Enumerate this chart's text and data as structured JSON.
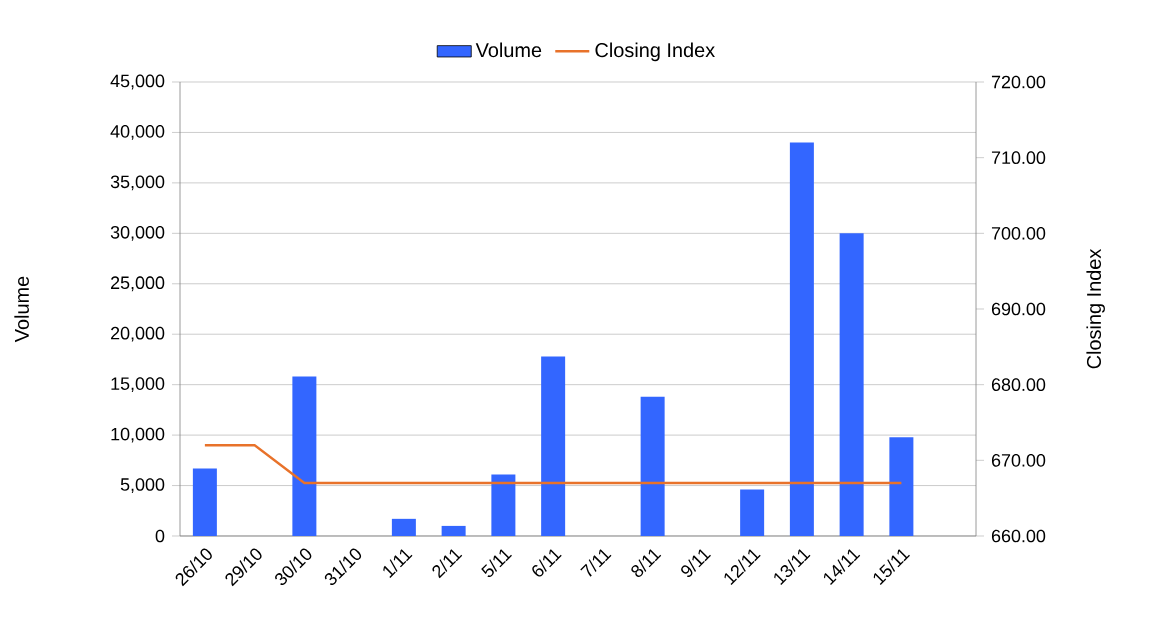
{
  "chart_data": {
    "type": "bar",
    "categories": [
      "26/10",
      "29/10",
      "30/10",
      "31/10",
      "1/11",
      "2/11",
      "5/11",
      "6/11",
      "7/11",
      "8/11",
      "9/11",
      "12/11",
      "13/11",
      "14/11",
      "15/11",
      null
    ],
    "series": [
      {
        "name": "Volume",
        "color": "#3366ff",
        "values": [
          6700,
          null,
          15800,
          null,
          1700,
          1000,
          6100,
          17800,
          null,
          13800,
          null,
          4600,
          39000,
          30000,
          9800,
          null
        ]
      },
      {
        "name": "Closing Index",
        "type": "line",
        "axis": "y2",
        "color": "#e8722a",
        "values": [
          672,
          672,
          667,
          667,
          667,
          667,
          667,
          667,
          667,
          667,
          667,
          667,
          667,
          667,
          667,
          null
        ]
      }
    ],
    "ylabel": "Volume",
    "y2label": "Closing Index",
    "ylim": [
      0,
      45000
    ],
    "yticks": [
      0,
      {
        "value": 5000,
        "label": "5,000"
      },
      {
        "value": 10000,
        "label": "10,000"
      },
      {
        "value": 15000,
        "label": "15,000"
      },
      {
        "value": 20000,
        "label": "20,000"
      },
      {
        "value": 25000,
        "label": "25,000"
      },
      {
        "value": 30000,
        "label": "30,000"
      },
      {
        "value": 35000,
        "label": "35,000"
      },
      {
        "value": 40000,
        "label": "40,000"
      },
      {
        "value": 45000,
        "label": "45,000"
      }
    ],
    "y2lim": [
      660,
      720
    ],
    "y2ticks": [
      {
        "value": 660,
        "label": "660.00"
      },
      {
        "value": 670,
        "label": "670.00"
      },
      {
        "value": 680,
        "label": "680.00"
      },
      {
        "value": 690,
        "label": "690.00"
      },
      {
        "value": 700,
        "label": "700.00"
      },
      {
        "value": 710,
        "label": "710.00"
      },
      {
        "value": 720,
        "label": "720.00"
      }
    ],
    "grid": "y",
    "legend": "top"
  }
}
